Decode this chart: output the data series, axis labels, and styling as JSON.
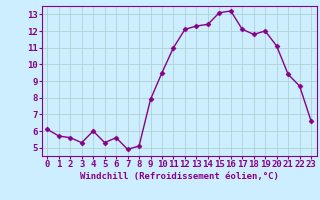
{
  "x": [
    0,
    1,
    2,
    3,
    4,
    5,
    6,
    7,
    8,
    9,
    10,
    11,
    12,
    13,
    14,
    15,
    16,
    17,
    18,
    19,
    20,
    21,
    22,
    23
  ],
  "y": [
    6.1,
    5.7,
    5.6,
    5.3,
    6.0,
    5.3,
    5.6,
    4.9,
    5.1,
    7.9,
    9.5,
    11.0,
    12.1,
    12.3,
    12.4,
    13.1,
    13.2,
    12.1,
    11.8,
    12.0,
    11.1,
    9.4,
    8.7,
    6.6
  ],
  "line_color": "#880088",
  "marker": "D",
  "marker_size": 2.5,
  "bg_color": "#cceeff",
  "grid_color": "#aacccc",
  "xlabel": "Windchill (Refroidissement éolien,°C)",
  "xlabel_color": "#880088",
  "tick_color": "#880088",
  "xlim": [
    -0.5,
    23.5
  ],
  "ylim": [
    4.5,
    13.5
  ],
  "yticks": [
    5,
    6,
    7,
    8,
    9,
    10,
    11,
    12,
    13
  ],
  "xticks": [
    0,
    1,
    2,
    3,
    4,
    5,
    6,
    7,
    8,
    9,
    10,
    11,
    12,
    13,
    14,
    15,
    16,
    17,
    18,
    19,
    20,
    21,
    22,
    23
  ],
  "spine_color": "#880088",
  "line_width": 1.0,
  "font_size": 6.5
}
